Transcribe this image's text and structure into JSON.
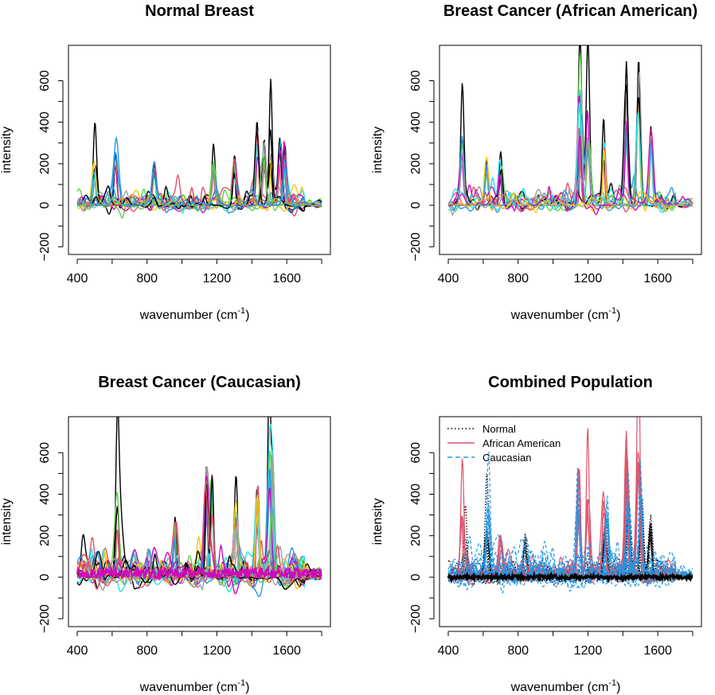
{
  "chart_data": [
    {
      "type": "line",
      "title": "Normal Breast",
      "xlabel": "wavenumber (cm",
      "xlabel_sup": "-1",
      "xlabel_end": ")",
      "ylabel": "intensity",
      "xlim": [
        400,
        1800
      ],
      "ylim": [
        -200,
        650
      ],
      "xticks": [
        "400",
        "800",
        "1200",
        "1600"
      ],
      "yticks": [
        "-200",
        "0",
        "200",
        "400",
        "600"
      ],
      "series_colors": [
        "#000000",
        "#df536b",
        "#61d04f",
        "#2297e6",
        "#28e2e5",
        "#cd0bbc",
        "#f5c710",
        "#9e9e9e"
      ],
      "series_count": 20,
      "peaks": [
        [
          500,
          200
        ],
        [
          620,
          255
        ],
        [
          840,
          215
        ],
        [
          1180,
          240
        ],
        [
          1300,
          240
        ],
        [
          1430,
          410
        ],
        [
          1470,
          305
        ],
        [
          1510,
          350
        ],
        [
          1560,
          300
        ],
        [
          1590,
          280
        ]
      ],
      "noise": 55
    },
    {
      "type": "line",
      "title": "Breast Cancer (African American)",
      "xlabel": "wavenumber (cm",
      "xlabel_sup": "-1",
      "xlabel_end": ")",
      "ylabel": "intensity",
      "xlim": [
        400,
        1800
      ],
      "ylim": [
        -200,
        650
      ],
      "xticks": [
        "400",
        "800",
        "1200",
        "1600"
      ],
      "yticks": [
        "-200",
        "0",
        "200",
        "400",
        "600"
      ],
      "series_colors": [
        "#000000",
        "#df536b",
        "#61d04f",
        "#2297e6",
        "#28e2e5",
        "#cd0bbc",
        "#f5c710",
        "#9e9e9e"
      ],
      "series_count": 16,
      "peaks": [
        [
          480,
          335
        ],
        [
          620,
          220
        ],
        [
          700,
          225
        ],
        [
          1150,
          535
        ],
        [
          1160,
          460
        ],
        [
          1200,
          420
        ],
        [
          1290,
          390
        ],
        [
          1420,
          660
        ],
        [
          1490,
          710
        ],
        [
          1560,
          370
        ]
      ],
      "noise": 60
    },
    {
      "type": "line",
      "title": "Breast Cancer (Caucasian)",
      "xlabel": "wavenumber (cm",
      "xlabel_sup": "-1",
      "xlabel_end": ")",
      "ylabel": "intensity",
      "xlim": [
        400,
        1800
      ],
      "ylim": [
        -200,
        650
      ],
      "xticks": [
        "400",
        "800",
        "1200",
        "1600"
      ],
      "yticks": [
        "-200",
        "0",
        "200",
        "400",
        "600"
      ],
      "series_colors": [
        "#000000",
        "#df536b",
        "#61d04f",
        "#2297e6",
        "#28e2e5",
        "#cd0bbc",
        "#f5c710",
        "#9e9e9e"
      ],
      "series_count": 26,
      "peaks": [
        [
          630,
          380
        ],
        [
          960,
          300
        ],
        [
          1140,
          535
        ],
        [
          1170,
          500
        ],
        [
          1310,
          390
        ],
        [
          1430,
          420
        ],
        [
          1500,
          575
        ],
        [
          1520,
          500
        ]
      ],
      "noise": 90
    },
    {
      "type": "line",
      "title": "Combined Population",
      "xlabel": "wavenumber (cm",
      "xlabel_sup": "-1",
      "xlabel_end": ")",
      "ylabel": "intensity",
      "xlim": [
        400,
        1800
      ],
      "ylim": [
        -200,
        650
      ],
      "xticks": [
        "400",
        "800",
        "1200",
        "1600"
      ],
      "yticks": [
        "-200",
        "0",
        "200",
        "400",
        "600"
      ],
      "legend": {
        "position": "top-left",
        "entries": [
          {
            "label": "Normal",
            "color": "#000000",
            "style": "dotted"
          },
          {
            "label": "African American",
            "color": "#df536b",
            "style": "solid"
          },
          {
            "label": "Caucasian",
            "color": "#2297e6",
            "style": "dashed"
          }
        ]
      },
      "series": [
        {
          "name": "Normal",
          "color": "#000000",
          "style": "dotted",
          "count": 20,
          "peaks": [
            [
              500,
              200
            ],
            [
              620,
              250
            ],
            [
              840,
              210
            ],
            [
              1300,
              240
            ],
            [
              1430,
              410
            ],
            [
              1510,
              350
            ],
            [
              1560,
              300
            ]
          ],
          "noise": 50
        },
        {
          "name": "African American",
          "color": "#df536b",
          "style": "solid",
          "count": 10,
          "peaks": [
            [
              480,
              335
            ],
            [
              700,
              225
            ],
            [
              1150,
              535
            ],
            [
              1200,
              420
            ],
            [
              1290,
              390
            ],
            [
              1420,
              660
            ],
            [
              1490,
              710
            ]
          ],
          "noise": 60
        },
        {
          "name": "Caucasian",
          "color": "#2297e6",
          "style": "dashed",
          "count": 20,
          "peaks": [
            [
              630,
              380
            ],
            [
              1140,
              535
            ],
            [
              1310,
              390
            ],
            [
              1430,
              420
            ],
            [
              1500,
              575
            ]
          ],
          "noise": 90
        }
      ]
    }
  ]
}
